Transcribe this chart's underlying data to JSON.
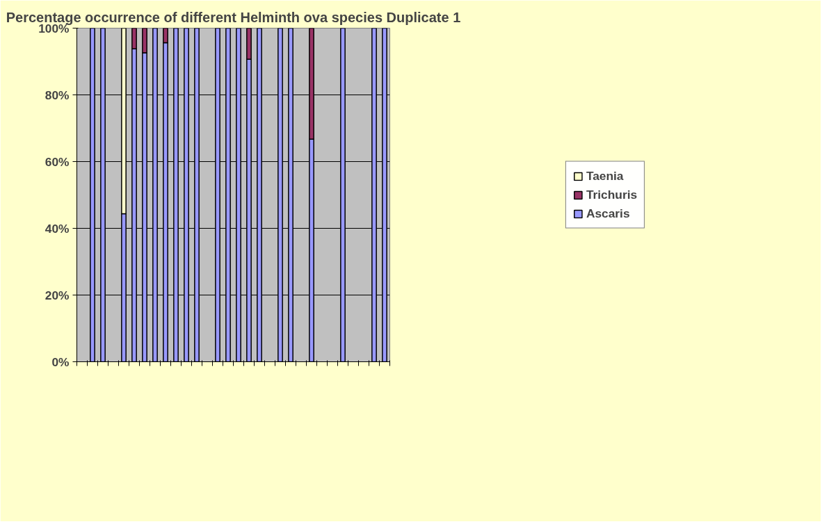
{
  "chart_data": {
    "type": "bar",
    "title": "Percentage occurrence of different Helminth ova species Duplicate 1",
    "categories": [
      null,
      null,
      null,
      null,
      null,
      null,
      null,
      null,
      null,
      null,
      null,
      null,
      null,
      null,
      null,
      null,
      null,
      null,
      null,
      null,
      null,
      null,
      null,
      null,
      null,
      null,
      null,
      null,
      null,
      null
    ],
    "stacked": true,
    "series": [
      {
        "name": "Ascaris",
        "color": "#9999ff",
        "values": [
          null,
          100,
          100,
          null,
          44.4,
          93.8,
          92.6,
          100,
          95.6,
          100,
          100,
          100,
          null,
          100,
          100,
          100,
          90.7,
          100,
          null,
          100,
          100,
          null,
          66.7,
          null,
          null,
          100,
          null,
          null,
          100,
          100
        ]
      },
      {
        "name": "Trichuris",
        "color": "#993366",
        "values": [
          null,
          null,
          null,
          null,
          null,
          6.2,
          7.4,
          null,
          4.4,
          null,
          null,
          null,
          null,
          null,
          null,
          null,
          9.3,
          null,
          null,
          null,
          null,
          null,
          33.3,
          null,
          null,
          null,
          null,
          null,
          null,
          null
        ]
      },
      {
        "name": "Taenia",
        "color": "#ffffcc",
        "values": [
          null,
          null,
          null,
          null,
          55.6,
          null,
          null,
          null,
          null,
          null,
          null,
          null,
          null,
          null,
          null,
          null,
          null,
          null,
          null,
          null,
          null,
          null,
          null,
          null,
          null,
          null,
          null,
          null,
          null,
          null
        ]
      }
    ],
    "ylim": [
      0,
      100
    ],
    "yticks": [
      {
        "value": 0,
        "label": "0%"
      },
      {
        "value": 20,
        "label": "20%"
      },
      {
        "value": 40,
        "label": "40%"
      },
      {
        "value": 60,
        "label": "60%"
      },
      {
        "value": 80,
        "label": "80%"
      },
      {
        "value": 100,
        "label": "100%"
      }
    ],
    "grid": "y",
    "legend": "right",
    "tick_labels": "y"
  }
}
